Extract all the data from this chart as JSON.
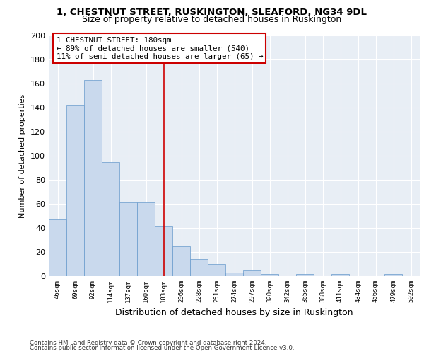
{
  "title1": "1, CHESTNUT STREET, RUSKINGTON, SLEAFORD, NG34 9DL",
  "title2": "Size of property relative to detached houses in Ruskington",
  "xlabel": "Distribution of detached houses by size in Ruskington",
  "ylabel": "Number of detached properties",
  "categories": [
    "46sqm",
    "69sqm",
    "92sqm",
    "114sqm",
    "137sqm",
    "160sqm",
    "183sqm",
    "206sqm",
    "228sqm",
    "251sqm",
    "274sqm",
    "297sqm",
    "320sqm",
    "342sqm",
    "365sqm",
    "388sqm",
    "411sqm",
    "434sqm",
    "456sqm",
    "479sqm",
    "502sqm"
  ],
  "values": [
    47,
    142,
    163,
    95,
    61,
    61,
    42,
    25,
    14,
    10,
    3,
    5,
    2,
    0,
    2,
    0,
    2,
    0,
    0,
    2,
    0
  ],
  "bar_color": "#c9d9ed",
  "bar_edge_color": "#6699cc",
  "highlight_index": 6,
  "highlight_color": "#cc0000",
  "annotation_line1": "1 CHESTNUT STREET: 180sqm",
  "annotation_line2": "← 89% of detached houses are smaller (540)",
  "annotation_line3": "11% of semi-detached houses are larger (65) →",
  "annotation_box_color": "#cc0000",
  "ylim": [
    0,
    200
  ],
  "yticks": [
    0,
    20,
    40,
    60,
    80,
    100,
    120,
    140,
    160,
    180,
    200
  ],
  "background_color": "#e8eef5",
  "grid_color": "#ffffff",
  "footer1": "Contains HM Land Registry data © Crown copyright and database right 2024.",
  "footer2": "Contains public sector information licensed under the Open Government Licence v3.0."
}
